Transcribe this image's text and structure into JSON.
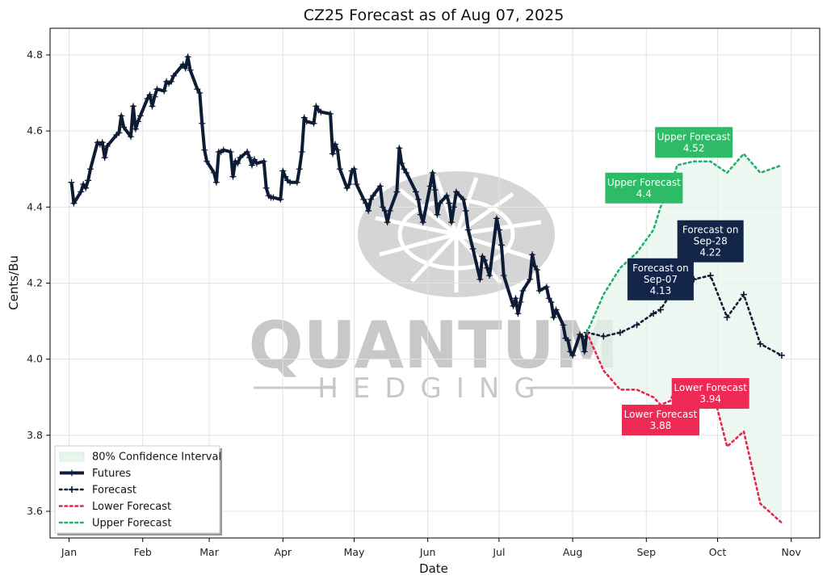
{
  "chart_data": {
    "type": "line",
    "title": "CZ25 Forecast as of Aug 07, 2025",
    "xlabel": "Date",
    "ylabel": "Cents/Bu",
    "xlim": [
      "2024-12-24",
      "2025-11-13"
    ],
    "ylim": [
      3.53,
      4.87
    ],
    "x_ticks": [
      {
        "date": "2025-01-01",
        "label": "Jan"
      },
      {
        "date": "2025-02-01",
        "label": "Feb"
      },
      {
        "date": "2025-03-01",
        "label": "Mar"
      },
      {
        "date": "2025-04-01",
        "label": "Apr"
      },
      {
        "date": "2025-05-01",
        "label": "May"
      },
      {
        "date": "2025-06-01",
        "label": "Jun"
      },
      {
        "date": "2025-07-01",
        "label": "Jul"
      },
      {
        "date": "2025-08-01",
        "label": "Aug"
      },
      {
        "date": "2025-09-01",
        "label": "Sep"
      },
      {
        "date": "2025-10-01",
        "label": "Oct"
      },
      {
        "date": "2025-11-01",
        "label": "Nov"
      }
    ],
    "y_ticks": [
      3.6,
      3.8,
      4.0,
      4.2,
      4.4,
      4.6,
      4.8
    ],
    "y_tick_labels": [
      "3.6",
      "3.8",
      "4.0",
      "4.2",
      "4.4",
      "4.6",
      "4.8"
    ],
    "grid": true,
    "legend_position": "lower-left",
    "legend": [
      "80% Confidence Interval",
      "Futures",
      "Forecast",
      "Lower Forecast",
      "Upper Forecast"
    ],
    "colors": {
      "futures": "#0d1b35",
      "forecast": "#0d1b35",
      "lower": "#e8264f",
      "upper": "#1eb26a",
      "band": "#e6f6ec",
      "upper_box": "#2dbb67",
      "lower_box": "#ee2a54",
      "forecast_box": "#13264a"
    },
    "series": [
      {
        "name": "Futures",
        "style": "solid",
        "points": [
          [
            "2025-01-02",
            4.465
          ],
          [
            "2025-01-03",
            4.41
          ],
          [
            "2025-01-06",
            4.44
          ],
          [
            "2025-01-07",
            4.46
          ],
          [
            "2025-01-08",
            4.45
          ],
          [
            "2025-01-09",
            4.47
          ],
          [
            "2025-01-10",
            4.5
          ],
          [
            "2025-01-13",
            4.57
          ],
          [
            "2025-01-14",
            4.565
          ],
          [
            "2025-01-15",
            4.57
          ],
          [
            "2025-01-16",
            4.53
          ],
          [
            "2025-01-17",
            4.56
          ],
          [
            "2025-01-21",
            4.59
          ],
          [
            "2025-01-22",
            4.595
          ],
          [
            "2025-01-23",
            4.64
          ],
          [
            "2025-01-24",
            4.61
          ],
          [
            "2025-01-27",
            4.585
          ],
          [
            "2025-01-28",
            4.665
          ],
          [
            "2025-01-29",
            4.605
          ],
          [
            "2025-01-30",
            4.625
          ],
          [
            "2025-01-31",
            4.64
          ],
          [
            "2025-02-03",
            4.685
          ],
          [
            "2025-02-04",
            4.695
          ],
          [
            "2025-02-05",
            4.665
          ],
          [
            "2025-02-06",
            4.69
          ],
          [
            "2025-02-07",
            4.71
          ],
          [
            "2025-02-10",
            4.705
          ],
          [
            "2025-02-11",
            4.73
          ],
          [
            "2025-02-12",
            4.725
          ],
          [
            "2025-02-13",
            4.73
          ],
          [
            "2025-02-14",
            4.745
          ],
          [
            "2025-02-18",
            4.775
          ],
          [
            "2025-02-19",
            4.765
          ],
          [
            "2025-02-20",
            4.795
          ],
          [
            "2025-02-21",
            4.76
          ],
          [
            "2025-02-24",
            4.71
          ],
          [
            "2025-02-25",
            4.7
          ],
          [
            "2025-02-26",
            4.62
          ],
          [
            "2025-02-27",
            4.55
          ],
          [
            "2025-02-28",
            4.52
          ],
          [
            "2025-03-03",
            4.49
          ],
          [
            "2025-03-04",
            4.465
          ],
          [
            "2025-03-05",
            4.545
          ],
          [
            "2025-03-06",
            4.545
          ],
          [
            "2025-03-07",
            4.55
          ],
          [
            "2025-03-10",
            4.545
          ],
          [
            "2025-03-11",
            4.48
          ],
          [
            "2025-03-12",
            4.52
          ],
          [
            "2025-03-13",
            4.515
          ],
          [
            "2025-03-14",
            4.53
          ],
          [
            "2025-03-17",
            4.545
          ],
          [
            "2025-03-18",
            4.53
          ],
          [
            "2025-03-19",
            4.51
          ],
          [
            "2025-03-20",
            4.525
          ],
          [
            "2025-03-21",
            4.515
          ],
          [
            "2025-03-24",
            4.52
          ],
          [
            "2025-03-25",
            4.45
          ],
          [
            "2025-03-26",
            4.43
          ],
          [
            "2025-03-27",
            4.425
          ],
          [
            "2025-03-28",
            4.425
          ],
          [
            "2025-03-31",
            4.42
          ],
          [
            "2025-04-01",
            4.495
          ],
          [
            "2025-04-02",
            4.48
          ],
          [
            "2025-04-03",
            4.47
          ],
          [
            "2025-04-04",
            4.465
          ],
          [
            "2025-04-07",
            4.465
          ],
          [
            "2025-04-08",
            4.5
          ],
          [
            "2025-04-09",
            4.545
          ],
          [
            "2025-04-10",
            4.635
          ],
          [
            "2025-04-11",
            4.625
          ],
          [
            "2025-04-14",
            4.62
          ],
          [
            "2025-04-15",
            4.665
          ],
          [
            "2025-04-16",
            4.655
          ],
          [
            "2025-04-17",
            4.65
          ],
          [
            "2025-04-21",
            4.645
          ],
          [
            "2025-04-22",
            4.54
          ],
          [
            "2025-04-23",
            4.565
          ],
          [
            "2025-04-24",
            4.55
          ],
          [
            "2025-04-25",
            4.5
          ],
          [
            "2025-04-28",
            4.45
          ],
          [
            "2025-04-29",
            4.46
          ],
          [
            "2025-04-30",
            4.495
          ],
          [
            "2025-05-01",
            4.5
          ],
          [
            "2025-05-02",
            4.46
          ],
          [
            "2025-05-05",
            4.42
          ],
          [
            "2025-05-06",
            4.41
          ],
          [
            "2025-05-07",
            4.39
          ],
          [
            "2025-05-08",
            4.42
          ],
          [
            "2025-05-09",
            4.43
          ],
          [
            "2025-05-12",
            4.455
          ],
          [
            "2025-05-13",
            4.4
          ],
          [
            "2025-05-14",
            4.39
          ],
          [
            "2025-05-15",
            4.36
          ],
          [
            "2025-05-16",
            4.39
          ],
          [
            "2025-05-19",
            4.44
          ],
          [
            "2025-05-20",
            4.555
          ],
          [
            "2025-05-21",
            4.515
          ],
          [
            "2025-05-22",
            4.5
          ],
          [
            "2025-05-23",
            4.49
          ],
          [
            "2025-05-27",
            4.44
          ],
          [
            "2025-05-28",
            4.42
          ],
          [
            "2025-05-29",
            4.38
          ],
          [
            "2025-05-30",
            4.36
          ],
          [
            "2025-06-02",
            4.455
          ],
          [
            "2025-06-03",
            4.49
          ],
          [
            "2025-06-04",
            4.445
          ],
          [
            "2025-06-05",
            4.38
          ],
          [
            "2025-06-06",
            4.41
          ],
          [
            "2025-06-09",
            4.43
          ],
          [
            "2025-06-10",
            4.41
          ],
          [
            "2025-06-11",
            4.36
          ],
          [
            "2025-06-12",
            4.4
          ],
          [
            "2025-06-13",
            4.44
          ],
          [
            "2025-06-16",
            4.42
          ],
          [
            "2025-06-17",
            4.39
          ],
          [
            "2025-06-18",
            4.34
          ],
          [
            "2025-06-20",
            4.29
          ],
          [
            "2025-06-23",
            4.21
          ],
          [
            "2025-06-24",
            4.27
          ],
          [
            "2025-06-25",
            4.26
          ],
          [
            "2025-06-26",
            4.24
          ],
          [
            "2025-06-27",
            4.22
          ],
          [
            "2025-06-30",
            4.37
          ],
          [
            "2025-07-01",
            4.34
          ],
          [
            "2025-07-02",
            4.3
          ],
          [
            "2025-07-03",
            4.22
          ],
          [
            "2025-07-07",
            4.14
          ],
          [
            "2025-07-08",
            4.16
          ],
          [
            "2025-07-09",
            4.12
          ],
          [
            "2025-07-10",
            4.15
          ],
          [
            "2025-07-11",
            4.18
          ],
          [
            "2025-07-14",
            4.21
          ],
          [
            "2025-07-15",
            4.275
          ],
          [
            "2025-07-16",
            4.245
          ],
          [
            "2025-07-17",
            4.235
          ],
          [
            "2025-07-18",
            4.18
          ],
          [
            "2025-07-21",
            4.19
          ],
          [
            "2025-07-22",
            4.16
          ],
          [
            "2025-07-23",
            4.15
          ],
          [
            "2025-07-24",
            4.11
          ],
          [
            "2025-07-25",
            4.13
          ],
          [
            "2025-07-28",
            4.09
          ],
          [
            "2025-07-29",
            4.055
          ],
          [
            "2025-07-30",
            4.05
          ],
          [
            "2025-07-31",
            4.02
          ],
          [
            "2025-08-01",
            4.01
          ],
          [
            "2025-08-04",
            4.065
          ],
          [
            "2025-08-05",
            4.06
          ],
          [
            "2025-08-06",
            4.02
          ],
          [
            "2025-08-07",
            4.07
          ]
        ]
      },
      {
        "name": "Forecast",
        "style": "dotted",
        "points": [
          [
            "2025-08-07",
            4.07
          ],
          [
            "2025-08-14",
            4.06
          ],
          [
            "2025-08-21",
            4.07
          ],
          [
            "2025-08-28",
            4.09
          ],
          [
            "2025-09-04",
            4.12
          ],
          [
            "2025-09-07",
            4.13
          ],
          [
            "2025-09-11",
            4.17
          ],
          [
            "2025-09-14",
            4.21
          ],
          [
            "2025-09-21",
            4.21
          ],
          [
            "2025-09-28",
            4.22
          ],
          [
            "2025-10-05",
            4.11
          ],
          [
            "2025-10-12",
            4.17
          ],
          [
            "2025-10-19",
            4.04
          ],
          [
            "2025-10-28",
            4.01
          ]
        ]
      },
      {
        "name": "Lower Forecast",
        "style": "dotted",
        "points": [
          [
            "2025-08-07",
            4.07
          ],
          [
            "2025-08-14",
            3.97
          ],
          [
            "2025-08-21",
            3.92
          ],
          [
            "2025-08-28",
            3.92
          ],
          [
            "2025-09-04",
            3.9
          ],
          [
            "2025-09-07",
            3.88
          ],
          [
            "2025-09-11",
            3.89
          ],
          [
            "2025-09-14",
            3.93
          ],
          [
            "2025-09-21",
            3.94
          ],
          [
            "2025-09-28",
            3.94
          ],
          [
            "2025-10-05",
            3.77
          ],
          [
            "2025-10-12",
            3.81
          ],
          [
            "2025-10-19",
            3.62
          ],
          [
            "2025-10-28",
            3.57
          ]
        ]
      },
      {
        "name": "Upper Forecast",
        "style": "dotted",
        "points": [
          [
            "2025-08-07",
            4.07
          ],
          [
            "2025-08-14",
            4.17
          ],
          [
            "2025-08-21",
            4.24
          ],
          [
            "2025-08-28",
            4.28
          ],
          [
            "2025-09-04",
            4.34
          ],
          [
            "2025-09-07",
            4.4
          ],
          [
            "2025-09-11",
            4.45
          ],
          [
            "2025-09-14",
            4.51
          ],
          [
            "2025-09-21",
            4.52
          ],
          [
            "2025-09-28",
            4.52
          ],
          [
            "2025-10-05",
            4.49
          ],
          [
            "2025-10-12",
            4.54
          ],
          [
            "2025-10-19",
            4.49
          ],
          [
            "2025-10-28",
            4.51
          ]
        ]
      }
    ],
    "confidence_interval": {
      "name": "80% Confidence Interval",
      "x": [
        "2025-08-07",
        "2025-10-28"
      ]
    },
    "annotations": [
      {
        "lines": [
          "Upper Forecast",
          "4.52"
        ],
        "kind": "upper",
        "date": "2025-09-21",
        "value": 4.57
      },
      {
        "lines": [
          "Upper Forecast",
          "4.4"
        ],
        "kind": "upper",
        "date": "2025-08-31",
        "value": 4.45
      },
      {
        "lines": [
          "Forecast on",
          "Sep-28",
          "4.22"
        ],
        "kind": "forecast",
        "date": "2025-09-28",
        "value": 4.31
      },
      {
        "lines": [
          "Forecast on",
          "Sep-07",
          "4.13"
        ],
        "kind": "forecast",
        "date": "2025-09-07",
        "value": 4.21
      },
      {
        "lines": [
          "Lower Forecast",
          "3.94"
        ],
        "kind": "lower",
        "date": "2025-09-28",
        "value": 3.91
      },
      {
        "lines": [
          "Lower Forecast",
          "3.88"
        ],
        "kind": "lower",
        "date": "2025-09-07",
        "value": 3.84
      }
    ],
    "watermark": {
      "line1": "QUANTUM",
      "line2": "HEDGING"
    }
  }
}
